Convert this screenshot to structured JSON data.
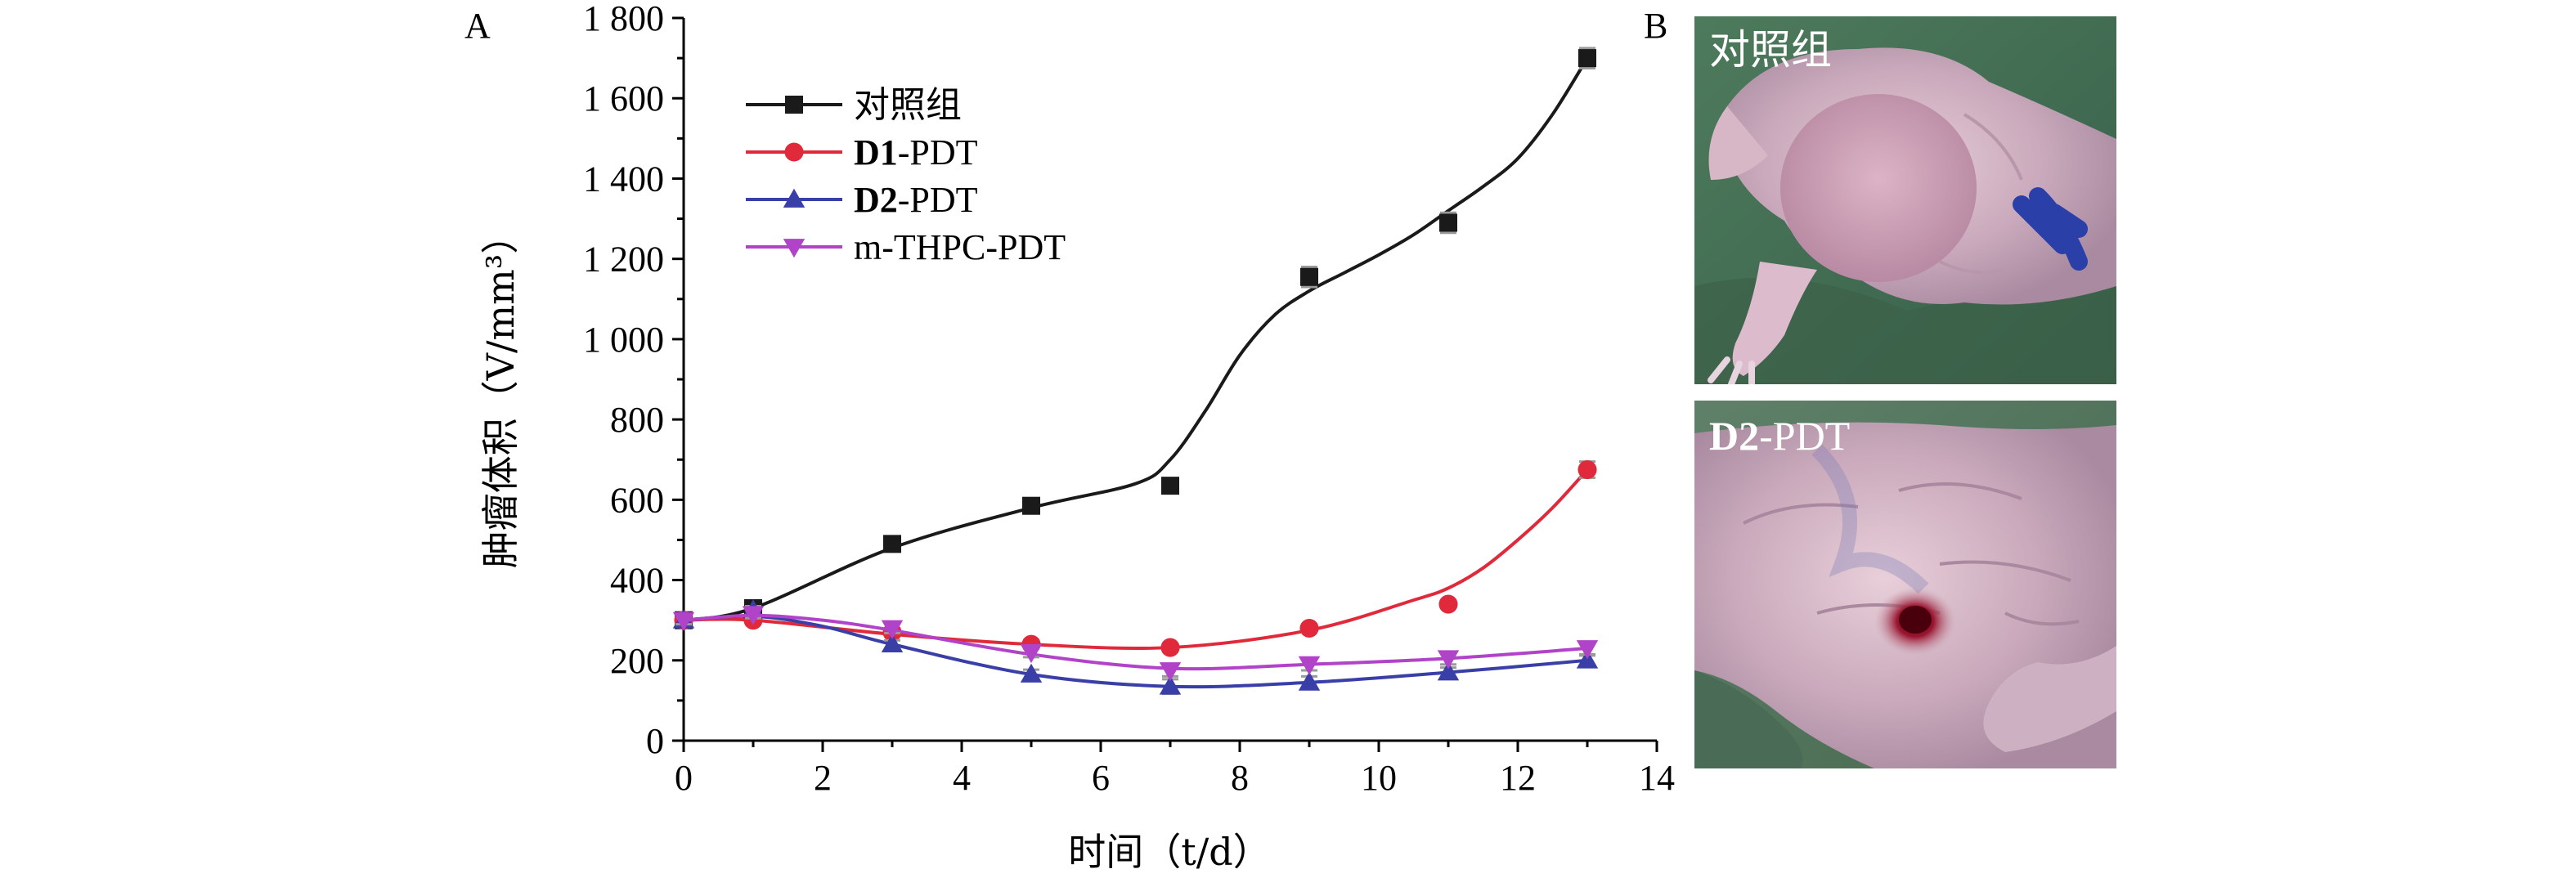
{
  "panels": {
    "chart_label": "A",
    "photos_label": "B"
  },
  "chart_data": {
    "type": "line",
    "xlabel": "时间（t/d）",
    "ylabel": "肿瘤体积（V/mm³）",
    "xlim": [
      0,
      14
    ],
    "ylim": [
      0,
      1800
    ],
    "x_ticks": [
      "0",
      "2",
      "4",
      "6",
      "8",
      "10",
      "12",
      "14"
    ],
    "y_ticks": [
      "0",
      "200",
      "400",
      "600",
      "800",
      "1 000",
      "1 200",
      "1 400",
      "1 600",
      "1 800"
    ],
    "x_tick_values": [
      0,
      2,
      4,
      6,
      8,
      10,
      12,
      14
    ],
    "y_tick_values": [
      0,
      200,
      400,
      600,
      800,
      1000,
      1200,
      1400,
      1600,
      1800
    ],
    "grid": false,
    "legend_position": "top-left",
    "x": [
      0,
      1,
      3,
      5,
      7,
      9,
      11,
      13
    ],
    "series": [
      {
        "name": "对照组",
        "name_bold": "",
        "name_rest": "对照组",
        "color": "#1a1a1a",
        "marker": "square",
        "values": [
          300,
          330,
          490,
          585,
          635,
          1155,
          1290,
          1700
        ],
        "errors": [
          15,
          15,
          15,
          15,
          15,
          25,
          25,
          25
        ],
        "curve": [
          [
            0,
            300
          ],
          [
            1,
            330
          ],
          [
            3,
            480
          ],
          [
            5,
            580
          ],
          [
            6.5,
            640
          ],
          [
            7,
            700
          ],
          [
            7.5,
            820
          ],
          [
            8,
            960
          ],
          [
            8.5,
            1060
          ],
          [
            9,
            1120
          ],
          [
            9.5,
            1165
          ],
          [
            10,
            1210
          ],
          [
            10.5,
            1260
          ],
          [
            11,
            1320
          ],
          [
            11.5,
            1380
          ],
          [
            12,
            1450
          ],
          [
            12.5,
            1560
          ],
          [
            13,
            1700
          ]
        ]
      },
      {
        "name": "D1-PDT",
        "name_bold": "D1",
        "name_rest": "-PDT",
        "color": "#e0293a",
        "marker": "circle",
        "values": [
          300,
          300,
          270,
          240,
          232,
          280,
          340,
          675
        ],
        "errors": [
          10,
          10,
          10,
          10,
          10,
          10,
          10,
          20
        ],
        "curve": [
          [
            0,
            300
          ],
          [
            1,
            300
          ],
          [
            3,
            265
          ],
          [
            5,
            240
          ],
          [
            7,
            232
          ],
          [
            9,
            275
          ],
          [
            10.5,
            350
          ],
          [
            11,
            380
          ],
          [
            11.5,
            430
          ],
          [
            12,
            500
          ],
          [
            12.5,
            580
          ],
          [
            13,
            675
          ]
        ]
      },
      {
        "name": "D2-PDT",
        "name_bold": "D2",
        "name_rest": "-PDT",
        "color": "#3a3fa8",
        "marker": "triangle-up",
        "values": [
          300,
          325,
          240,
          165,
          135,
          145,
          170,
          200
        ],
        "errors": [
          10,
          10,
          10,
          12,
          18,
          15,
          12,
          12
        ],
        "curve": [
          [
            0,
            300
          ],
          [
            1,
            310
          ],
          [
            2,
            285
          ],
          [
            3,
            240
          ],
          [
            5,
            165
          ],
          [
            7,
            135
          ],
          [
            9,
            145
          ],
          [
            11,
            170
          ],
          [
            13,
            200
          ]
        ]
      },
      {
        "name": "m-THPC-PDT",
        "name_bold": "",
        "name_rest": "m-THPC-PDT",
        "color": "#b043c8",
        "marker": "triangle-down",
        "values": [
          300,
          315,
          280,
          220,
          175,
          190,
          205,
          230
        ],
        "errors": [
          10,
          10,
          12,
          12,
          15,
          15,
          15,
          15
        ],
        "curve": [
          [
            0,
            300
          ],
          [
            1,
            312
          ],
          [
            2,
            300
          ],
          [
            3,
            275
          ],
          [
            5,
            215
          ],
          [
            7,
            180
          ],
          [
            9,
            190
          ],
          [
            11,
            205
          ],
          [
            13,
            230
          ]
        ]
      }
    ]
  },
  "photos": [
    {
      "caption": "对照组",
      "caption_bold": "",
      "caption_rest": "对照组"
    },
    {
      "caption": "D2-PDT",
      "caption_bold": "D2",
      "caption_rest": "-PDT"
    }
  ]
}
